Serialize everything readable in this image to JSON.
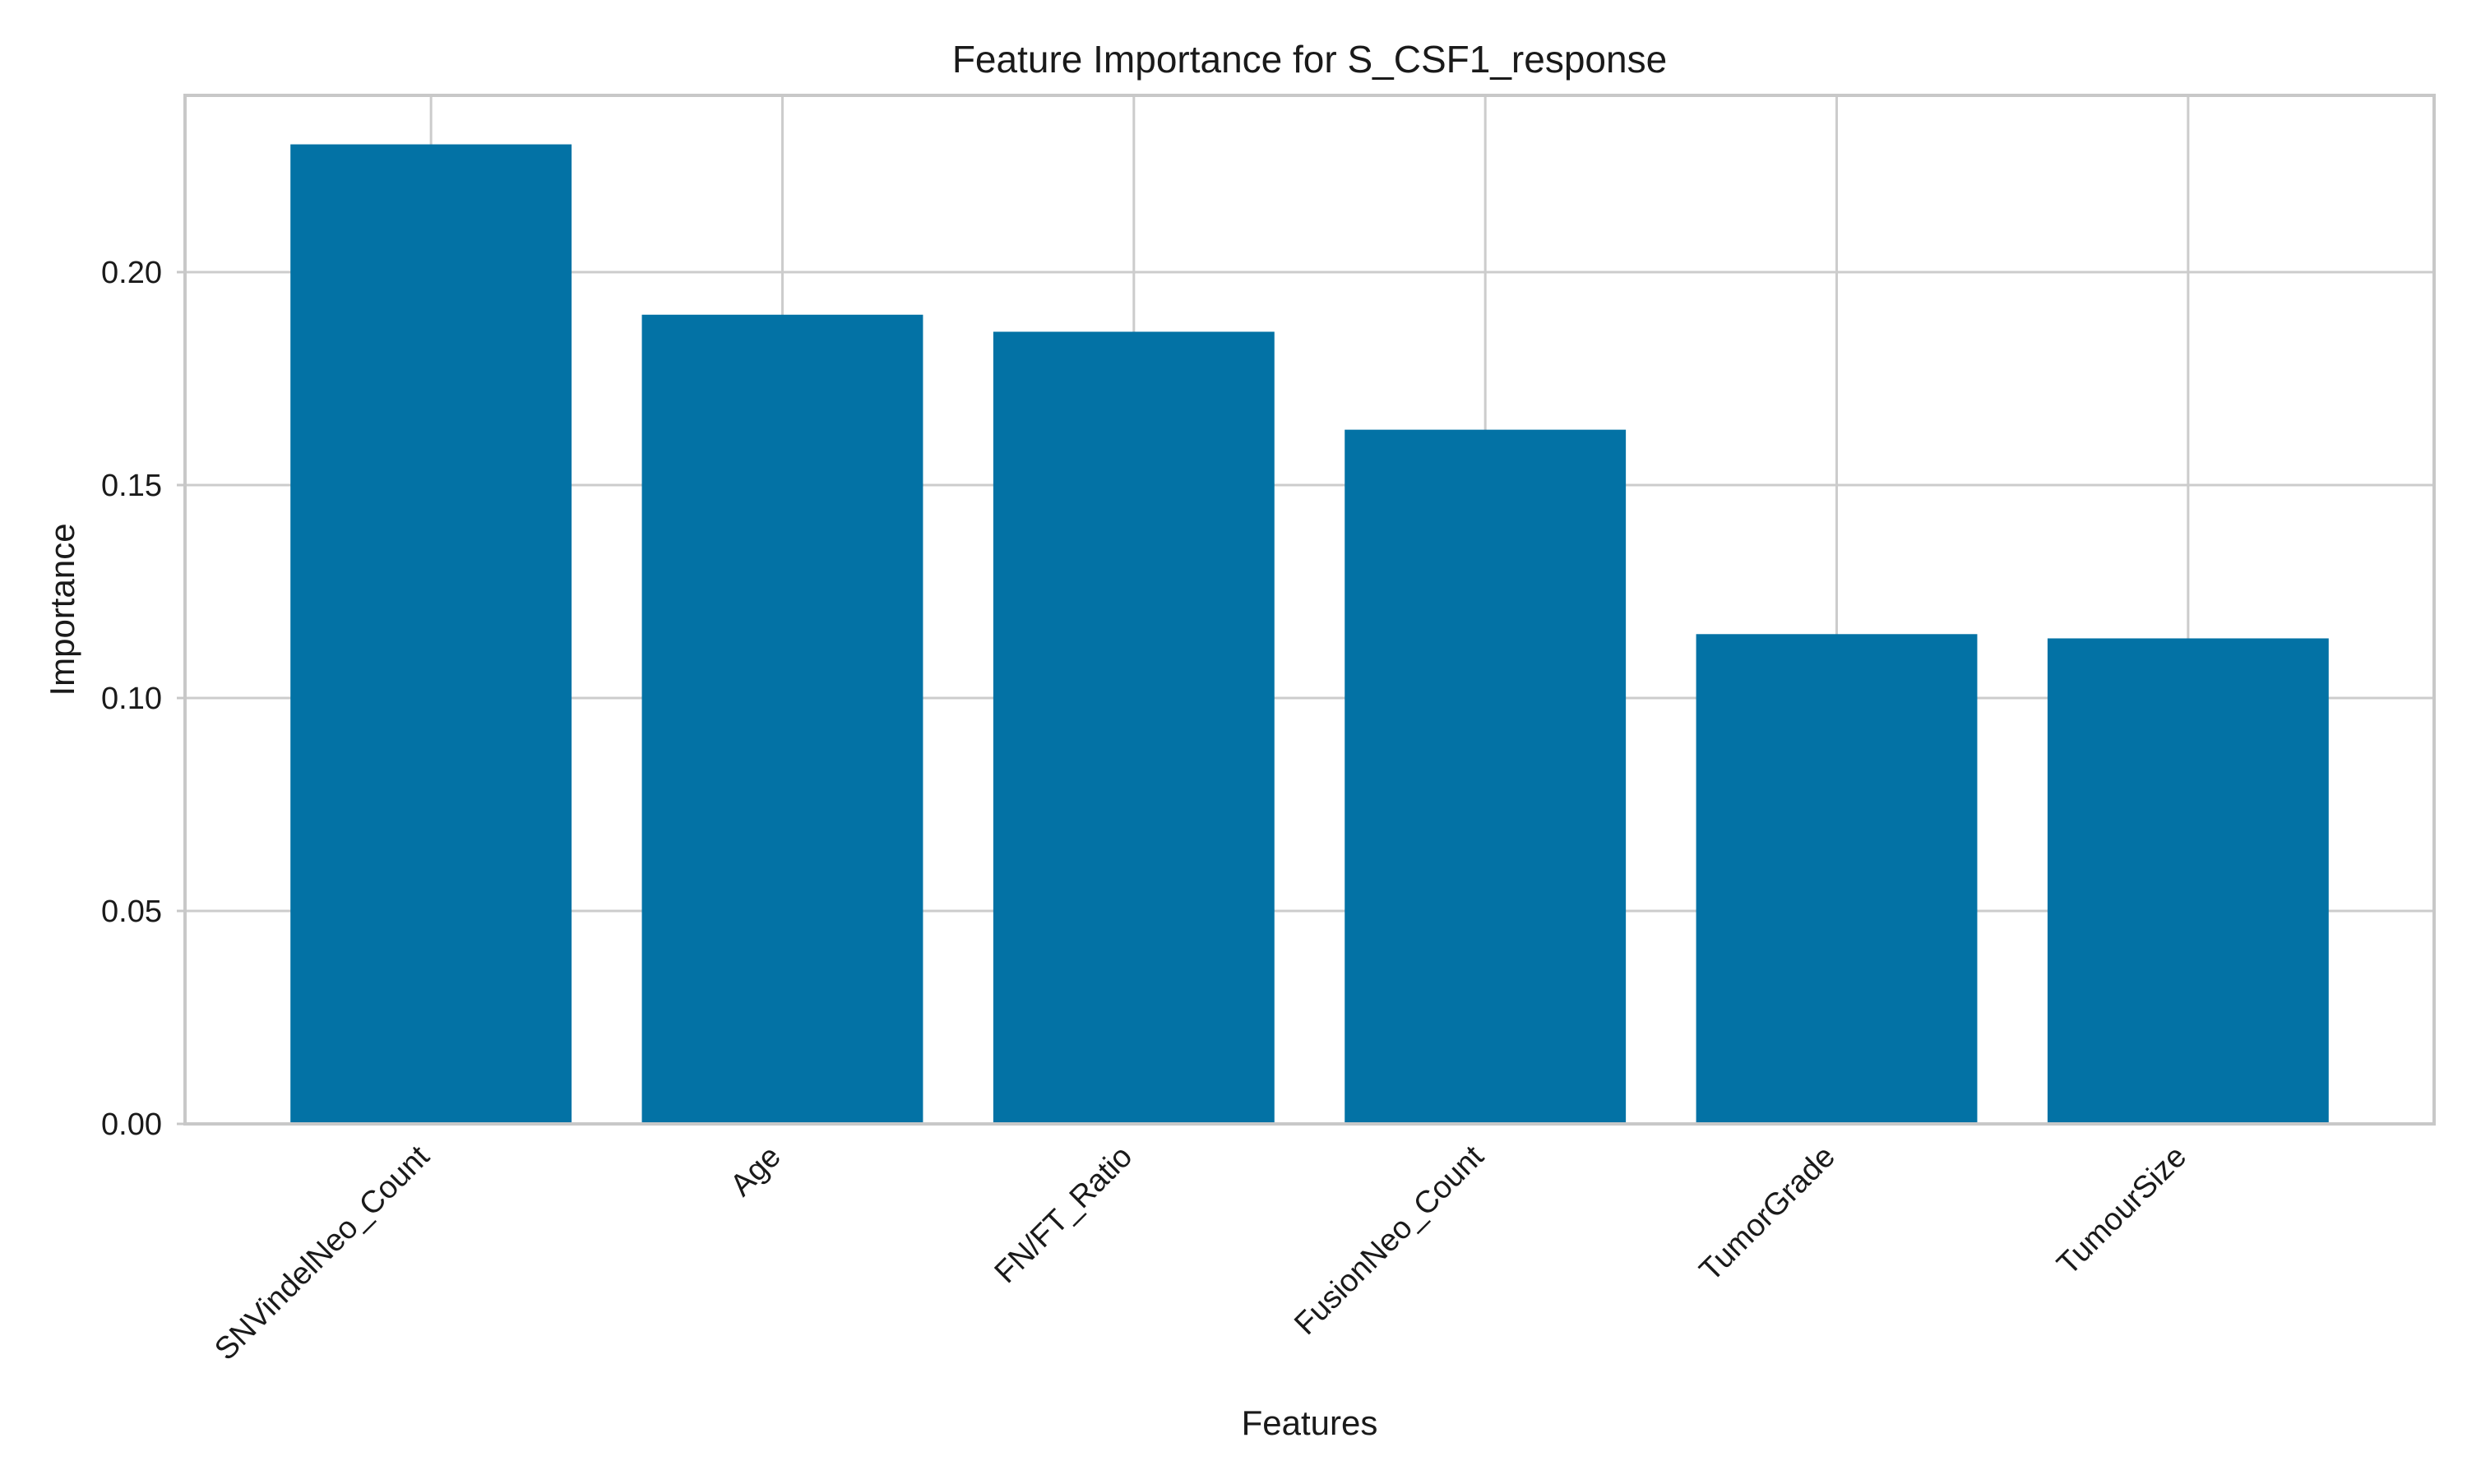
{
  "chart_data": {
    "type": "bar",
    "title": "Feature Importance for S_CSF1_response",
    "xlabel": "Features",
    "ylabel": "Importance",
    "categories": [
      "SNVindelNeo_Count",
      "Age",
      "FN/FT_Ratio",
      "FusionNeo_Count",
      "TumorGrade",
      "TumourSize"
    ],
    "values": [
      0.23,
      0.19,
      0.186,
      0.163,
      0.115,
      0.114
    ],
    "ylim": [
      0,
      0.2415
    ],
    "yticks": [
      0.0,
      0.05,
      0.1,
      0.15,
      0.2
    ],
    "ytick_labels": [
      "0.00",
      "0.05",
      "0.10",
      "0.15",
      "0.20"
    ],
    "grid": true,
    "bar_color": "#0372a5",
    "x_tick_rotation": -45
  }
}
